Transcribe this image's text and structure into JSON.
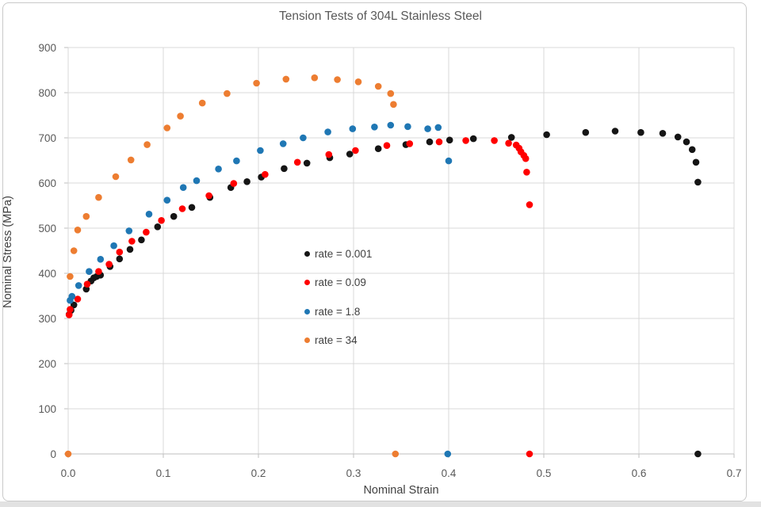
{
  "colors": {
    "grid_line": "#d9d9d9",
    "axis_line": "#bfbfbf",
    "tick_text": "#595959",
    "title_text": "#595959",
    "axis_title_text": "#404040",
    "card_border": "#c9c9c9",
    "window_edge": "#e2e2e2",
    "series_black": "#151515",
    "series_red": "#ff0000",
    "series_blue": "#1f77b4",
    "series_orange": "#ed7d31"
  },
  "chart_data": {
    "type": "scatter",
    "title": "Tension Tests of 304L Stainless Steel",
    "grid": true,
    "legend_position": "inside-left-center",
    "x_axis": {
      "label": "Nominal Strain",
      "range": [
        0,
        0.7
      ],
      "ticks": [
        {
          "value": 0.0,
          "label": "0.0"
        },
        {
          "value": 0.1,
          "label": "0.1"
        },
        {
          "value": 0.2,
          "label": "0.2"
        },
        {
          "value": 0.3,
          "label": "0.3"
        },
        {
          "value": 0.4,
          "label": "0.4"
        },
        {
          "value": 0.5,
          "label": "0.5"
        },
        {
          "value": 0.6,
          "label": "0.6"
        },
        {
          "value": 0.7,
          "label": "0.7"
        }
      ]
    },
    "y_axis": {
      "label": "Nominal Stress (MPa)",
      "range": [
        0,
        900
      ],
      "ticks": [
        {
          "value": 0,
          "label": "0"
        },
        {
          "value": 100,
          "label": "100"
        },
        {
          "value": 200,
          "label": "200"
        },
        {
          "value": 300,
          "label": "300"
        },
        {
          "value": 400,
          "label": "400"
        },
        {
          "value": 500,
          "label": "500"
        },
        {
          "value": 600,
          "label": "600"
        },
        {
          "value": 700,
          "label": "700"
        },
        {
          "value": 800,
          "label": "800"
        },
        {
          "value": 900,
          "label": "900"
        }
      ]
    },
    "series": [
      {
        "name": "rate = 0.001",
        "color": "#151515",
        "points": [
          [
            0.001,
            309
          ],
          [
            0.003,
            318
          ],
          [
            0.006,
            330
          ],
          [
            0.019,
            365
          ],
          [
            0.024,
            383
          ],
          [
            0.027,
            390
          ],
          [
            0.03,
            393
          ],
          [
            0.034,
            396
          ],
          [
            0.044,
            415
          ],
          [
            0.054,
            432
          ],
          [
            0.065,
            453
          ],
          [
            0.077,
            474
          ],
          [
            0.094,
            503
          ],
          [
            0.111,
            526
          ],
          [
            0.13,
            546
          ],
          [
            0.149,
            568
          ],
          [
            0.171,
            590
          ],
          [
            0.188,
            603
          ],
          [
            0.203,
            613
          ],
          [
            0.227,
            632
          ],
          [
            0.251,
            644
          ],
          [
            0.275,
            656
          ],
          [
            0.296,
            664
          ],
          [
            0.326,
            676
          ],
          [
            0.355,
            685
          ],
          [
            0.38,
            691
          ],
          [
            0.401,
            695
          ],
          [
            0.426,
            698
          ],
          [
            0.466,
            701
          ],
          [
            0.503,
            707
          ],
          [
            0.544,
            712
          ],
          [
            0.575,
            715
          ],
          [
            0.602,
            712
          ],
          [
            0.625,
            710
          ],
          [
            0.641,
            702
          ],
          [
            0.65,
            691
          ],
          [
            0.656,
            674
          ],
          [
            0.66,
            646
          ],
          [
            0.662,
            602
          ],
          [
            0.662,
            0
          ]
        ]
      },
      {
        "name": "rate = 0.09",
        "color": "#ff0000",
        "points": [
          [
            0.001,
            308
          ],
          [
            0.002,
            320
          ],
          [
            0.01,
            343
          ],
          [
            0.02,
            376
          ],
          [
            0.032,
            404
          ],
          [
            0.043,
            420
          ],
          [
            0.054,
            447
          ],
          [
            0.067,
            471
          ],
          [
            0.082,
            491
          ],
          [
            0.098,
            517
          ],
          [
            0.12,
            543
          ],
          [
            0.148,
            572
          ],
          [
            0.174,
            599
          ],
          [
            0.207,
            619
          ],
          [
            0.241,
            646
          ],
          [
            0.274,
            663
          ],
          [
            0.302,
            672
          ],
          [
            0.335,
            683
          ],
          [
            0.359,
            687
          ],
          [
            0.39,
            691
          ],
          [
            0.418,
            694
          ],
          [
            0.448,
            694
          ],
          [
            0.463,
            688
          ],
          [
            0.471,
            684
          ],
          [
            0.474,
            677
          ],
          [
            0.476,
            669
          ],
          [
            0.479,
            661
          ],
          [
            0.481,
            654
          ],
          [
            0.482,
            624
          ],
          [
            0.485,
            552
          ],
          [
            0.485,
            0
          ]
        ]
      },
      {
        "name": "rate = 1.8",
        "color": "#1f77b4",
        "points": [
          [
            0.002,
            340
          ],
          [
            0.004,
            349
          ],
          [
            0.011,
            373
          ],
          [
            0.022,
            404
          ],
          [
            0.034,
            431
          ],
          [
            0.048,
            461
          ],
          [
            0.064,
            494
          ],
          [
            0.085,
            531
          ],
          [
            0.104,
            562
          ],
          [
            0.121,
            590
          ],
          [
            0.135,
            605
          ],
          [
            0.158,
            631
          ],
          [
            0.177,
            649
          ],
          [
            0.202,
            672
          ],
          [
            0.226,
            687
          ],
          [
            0.247,
            700
          ],
          [
            0.273,
            713
          ],
          [
            0.299,
            720
          ],
          [
            0.322,
            724
          ],
          [
            0.339,
            728
          ],
          [
            0.357,
            725
          ],
          [
            0.378,
            720
          ],
          [
            0.389,
            723
          ],
          [
            0.4,
            649
          ],
          [
            0.399,
            0
          ]
        ]
      },
      {
        "name": "rate = 34",
        "color": "#ed7d31",
        "points": [
          [
            0.0,
            0
          ],
          [
            0.002,
            393
          ],
          [
            0.006,
            450
          ],
          [
            0.01,
            496
          ],
          [
            0.019,
            526
          ],
          [
            0.032,
            568
          ],
          [
            0.05,
            614
          ],
          [
            0.066,
            651
          ],
          [
            0.083,
            685
          ],
          [
            0.104,
            722
          ],
          [
            0.118,
            748
          ],
          [
            0.141,
            777
          ],
          [
            0.167,
            798
          ],
          [
            0.198,
            821
          ],
          [
            0.229,
            830
          ],
          [
            0.259,
            833
          ],
          [
            0.283,
            829
          ],
          [
            0.305,
            824
          ],
          [
            0.326,
            814
          ],
          [
            0.339,
            798
          ],
          [
            0.342,
            774
          ],
          [
            0.344,
            0
          ]
        ]
      }
    ]
  }
}
